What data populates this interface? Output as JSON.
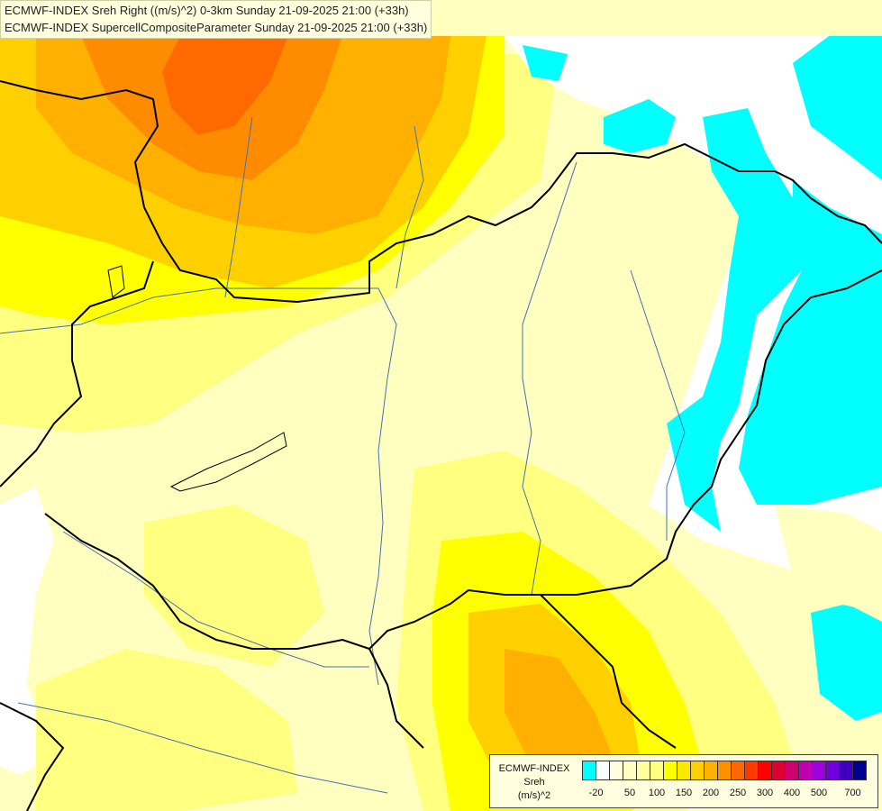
{
  "header": {
    "line1": "ECMWF-INDEX Sreh Right ((m/s)^2) 0-3km Sunday 21-09-2025 21:00 (+33h)",
    "line2": "ECMWF-INDEX SupercellCompositeParameter Sunday 21-09-2025 21:00 (+33h)"
  },
  "legend": {
    "title_lines": [
      "ECMWF-INDEX",
      "Sreh",
      "(m/s)^2"
    ],
    "colors": [
      "#00ffff",
      "#ffffff",
      "#ffffe0",
      "#ffffc0",
      "#ffffa0",
      "#ffff80",
      "#ffff00",
      "#ffe800",
      "#ffd000",
      "#ffb000",
      "#ff9000",
      "#ff6800",
      "#ff3800",
      "#ff0000",
      "#e00030",
      "#d00070",
      "#c000b0",
      "#a000e0",
      "#7000e0",
      "#4000c0",
      "#000090"
    ],
    "tick_labels": [
      "-20",
      "50",
      "100",
      "150",
      "200",
      "250",
      "300",
      "400",
      "500",
      "700"
    ]
  },
  "map": {
    "field_colors": {
      "cyan": "#00ffff",
      "white": "#ffffff",
      "pale": "#ffffc0",
      "light_yellow": "#ffff80",
      "yellow": "#ffff00",
      "gold": "#ffd000",
      "orange": "#ffb000",
      "dark_orange": "#ff8c00",
      "red_orange": "#ff6a00"
    },
    "border_color": "#000000",
    "river_color": "#4a6fb0"
  }
}
